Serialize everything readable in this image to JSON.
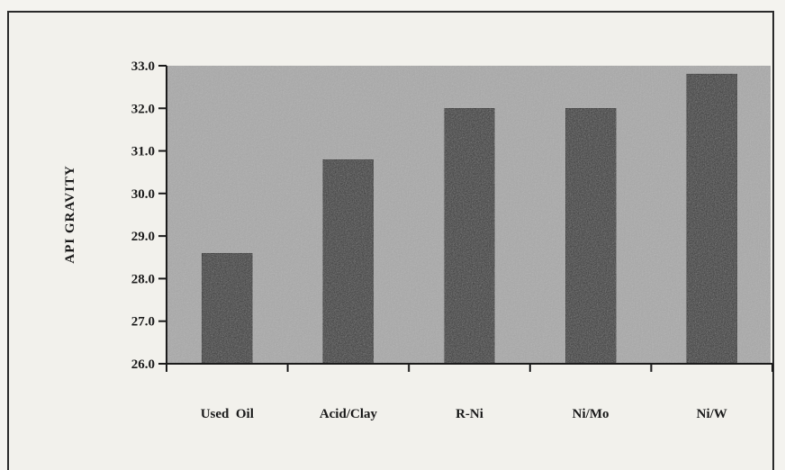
{
  "chart_data": {
    "type": "bar",
    "title": "",
    "xlabel": "",
    "ylabel": "API GRAVITY",
    "categories": [
      "Used  Oil",
      "Acid/Clay",
      "R-Ni",
      "Ni/Mo",
      "Ni/W"
    ],
    "values": [
      28.6,
      30.8,
      32.0,
      32.0,
      32.8
    ],
    "ylim": [
      26.0,
      33.0
    ],
    "yticks": [
      "26.0",
      "27.0",
      "28.0",
      "29.0",
      "30.0",
      "31.0",
      "32.0",
      "33.0"
    ],
    "grid": false,
    "legend": "none",
    "colors": {
      "plot_background": "#a9a9a9",
      "bar_fill": "#2e2e2e",
      "axis": "#1a1a1a"
    }
  }
}
